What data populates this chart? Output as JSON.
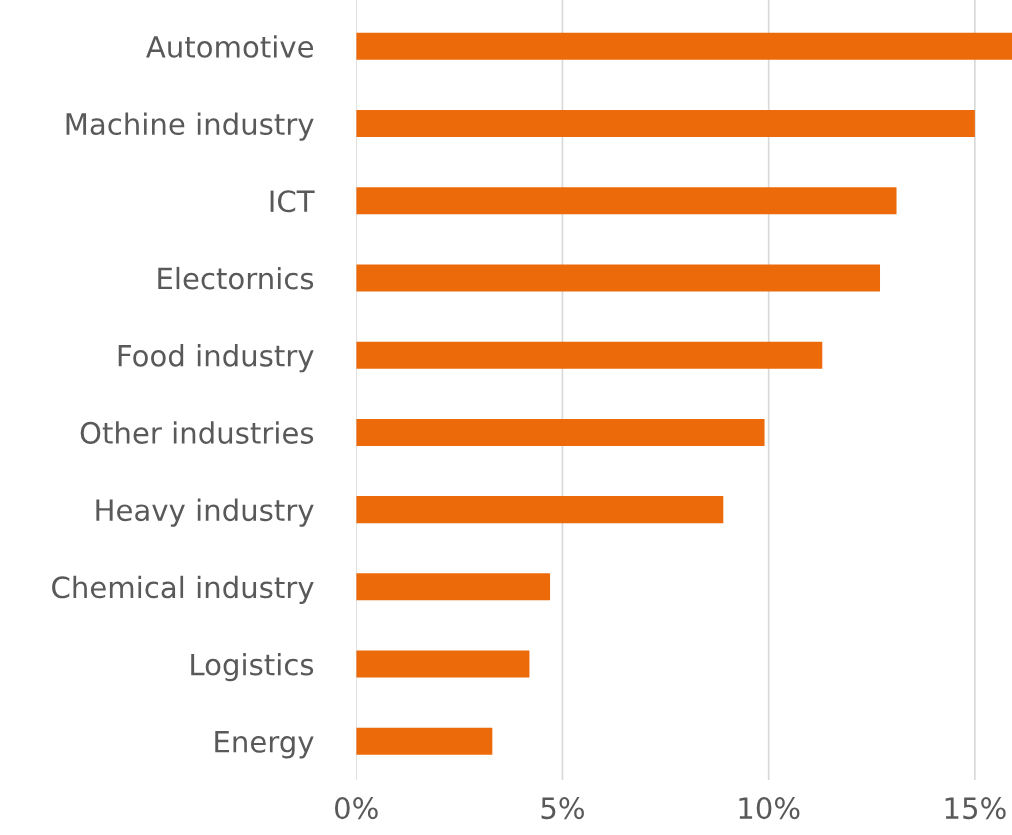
{
  "chart_data": {
    "type": "bar",
    "orientation": "horizontal",
    "categories": [
      "Automotive",
      "Machine industry",
      "ICT",
      "Electornics",
      "Food industry",
      "Other industries",
      "Heavy industry",
      "Chemical industry",
      "Logistics",
      "Energy"
    ],
    "values": [
      15.9,
      15.0,
      13.1,
      12.7,
      11.3,
      9.9,
      8.9,
      4.7,
      4.2,
      3.3
    ],
    "color": "#ec6a0a",
    "xlim": [
      0,
      15.9
    ],
    "xticks": [
      {
        "value": 0,
        "label": "0%"
      },
      {
        "value": 5,
        "label": "5%"
      },
      {
        "value": 10,
        "label": "10%"
      },
      {
        "value": 15,
        "label": "15%"
      }
    ],
    "grid": "x",
    "legend": false
  }
}
